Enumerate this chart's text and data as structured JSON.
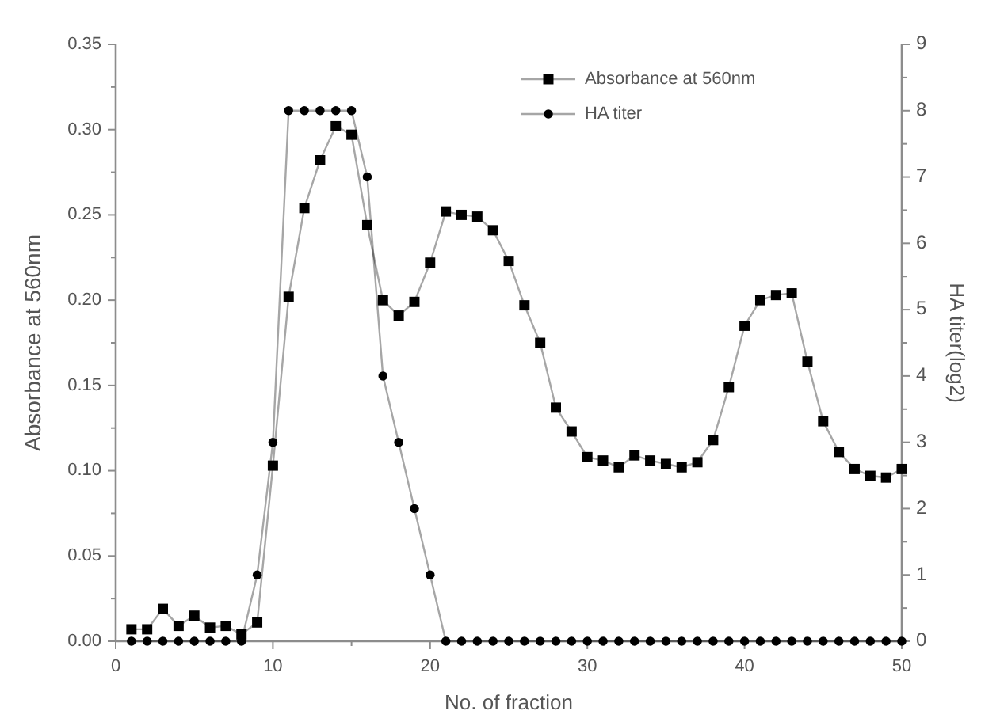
{
  "chart_data": {
    "type": "line",
    "xlabel": "No. of fraction",
    "ylabel": "Absorbance at 560nm",
    "y2label": "HA titer(log2)",
    "x": [
      1,
      2,
      3,
      4,
      5,
      6,
      7,
      8,
      9,
      10,
      11,
      12,
      13,
      14,
      15,
      16,
      17,
      18,
      19,
      20,
      21,
      22,
      23,
      24,
      25,
      26,
      27,
      28,
      29,
      30,
      31,
      32,
      33,
      34,
      35,
      36,
      37,
      38,
      39,
      40,
      41,
      42,
      43,
      44,
      45,
      46,
      47,
      48,
      49,
      50
    ],
    "series": [
      {
        "name": "Absorbance at 560nm",
        "color": "#000000",
        "marker": "square",
        "values": [
          0.007,
          0.007,
          0.019,
          0.009,
          0.015,
          0.008,
          0.009,
          0.004,
          0.011,
          0.103,
          0.202,
          0.254,
          0.282,
          0.302,
          0.297,
          0.244,
          0.2,
          0.191,
          0.199,
          0.222,
          0.252,
          0.25,
          0.249,
          0.241,
          0.223,
          0.197,
          0.175,
          0.137,
          0.123,
          0.108,
          0.106,
          0.102,
          0.109,
          0.106,
          0.104,
          0.102,
          0.105,
          0.118,
          0.149,
          0.185,
          0.2,
          0.203,
          0.204,
          0.164,
          0.129,
          0.111,
          0.101,
          0.097,
          0.096,
          0.101
        ]
      },
      {
        "name": "HA titer",
        "color": "#000000",
        "marker": "circle",
        "axis": "y2",
        "values": [
          0,
          0,
          0,
          0,
          0,
          0,
          0,
          0,
          1,
          3,
          8,
          8,
          8,
          8,
          8,
          7,
          4,
          3,
          2,
          1,
          0,
          0,
          0,
          0,
          0,
          0,
          0,
          0,
          0,
          0,
          0,
          0,
          0,
          0,
          0,
          0,
          0,
          0,
          0,
          0,
          0,
          0,
          0,
          0,
          0,
          0,
          0,
          0,
          0,
          0
        ]
      }
    ],
    "xlim": [
      0,
      50
    ],
    "xticks": [
      0,
      {
        "value": 5,
        "label": null
      },
      10,
      {
        "value": 15,
        "label": null
      },
      20,
      {
        "value": 25,
        "label": null
      },
      30,
      {
        "value": 35,
        "label": null
      },
      40,
      {
        "value": 45,
        "label": null
      },
      50
    ],
    "ylim": [
      0,
      0.35
    ],
    "yticks": [
      {
        "value": 0,
        "label": "0.00"
      },
      {
        "value": 0.025,
        "label": null
      },
      {
        "value": 0.05,
        "label": "0.05"
      },
      {
        "value": 0.075,
        "label": null
      },
      {
        "value": 0.1,
        "label": "0.10"
      },
      {
        "value": 0.125,
        "label": null
      },
      {
        "value": 0.15,
        "label": "0.15"
      },
      {
        "value": 0.175,
        "label": null
      },
      {
        "value": 0.2,
        "label": "0.20"
      },
      {
        "value": 0.225,
        "label": null
      },
      {
        "value": 0.25,
        "label": "0.25"
      },
      {
        "value": 0.275,
        "label": null
      },
      {
        "value": 0.3,
        "label": "0.30"
      },
      {
        "value": 0.325,
        "label": null
      },
      {
        "value": 0.35,
        "label": "0.35"
      }
    ],
    "y2lim": [
      0,
      9
    ],
    "y2ticks": [
      0,
      {
        "value": 0.5,
        "label": null
      },
      1,
      {
        "value": 1.5,
        "label": null
      },
      2,
      {
        "value": 2.5,
        "label": null
      },
      3,
      {
        "value": 3.5,
        "label": null
      },
      4,
      {
        "value": 4.5,
        "label": null
      },
      5,
      {
        "value": 5.5,
        "label": null
      },
      6,
      {
        "value": 6.5,
        "label": null
      },
      7,
      {
        "value": 7.5,
        "label": null
      },
      8,
      {
        "value": 8.5,
        "label": null
      },
      9
    ],
    "legend": "top right",
    "line_style": "solid"
  }
}
